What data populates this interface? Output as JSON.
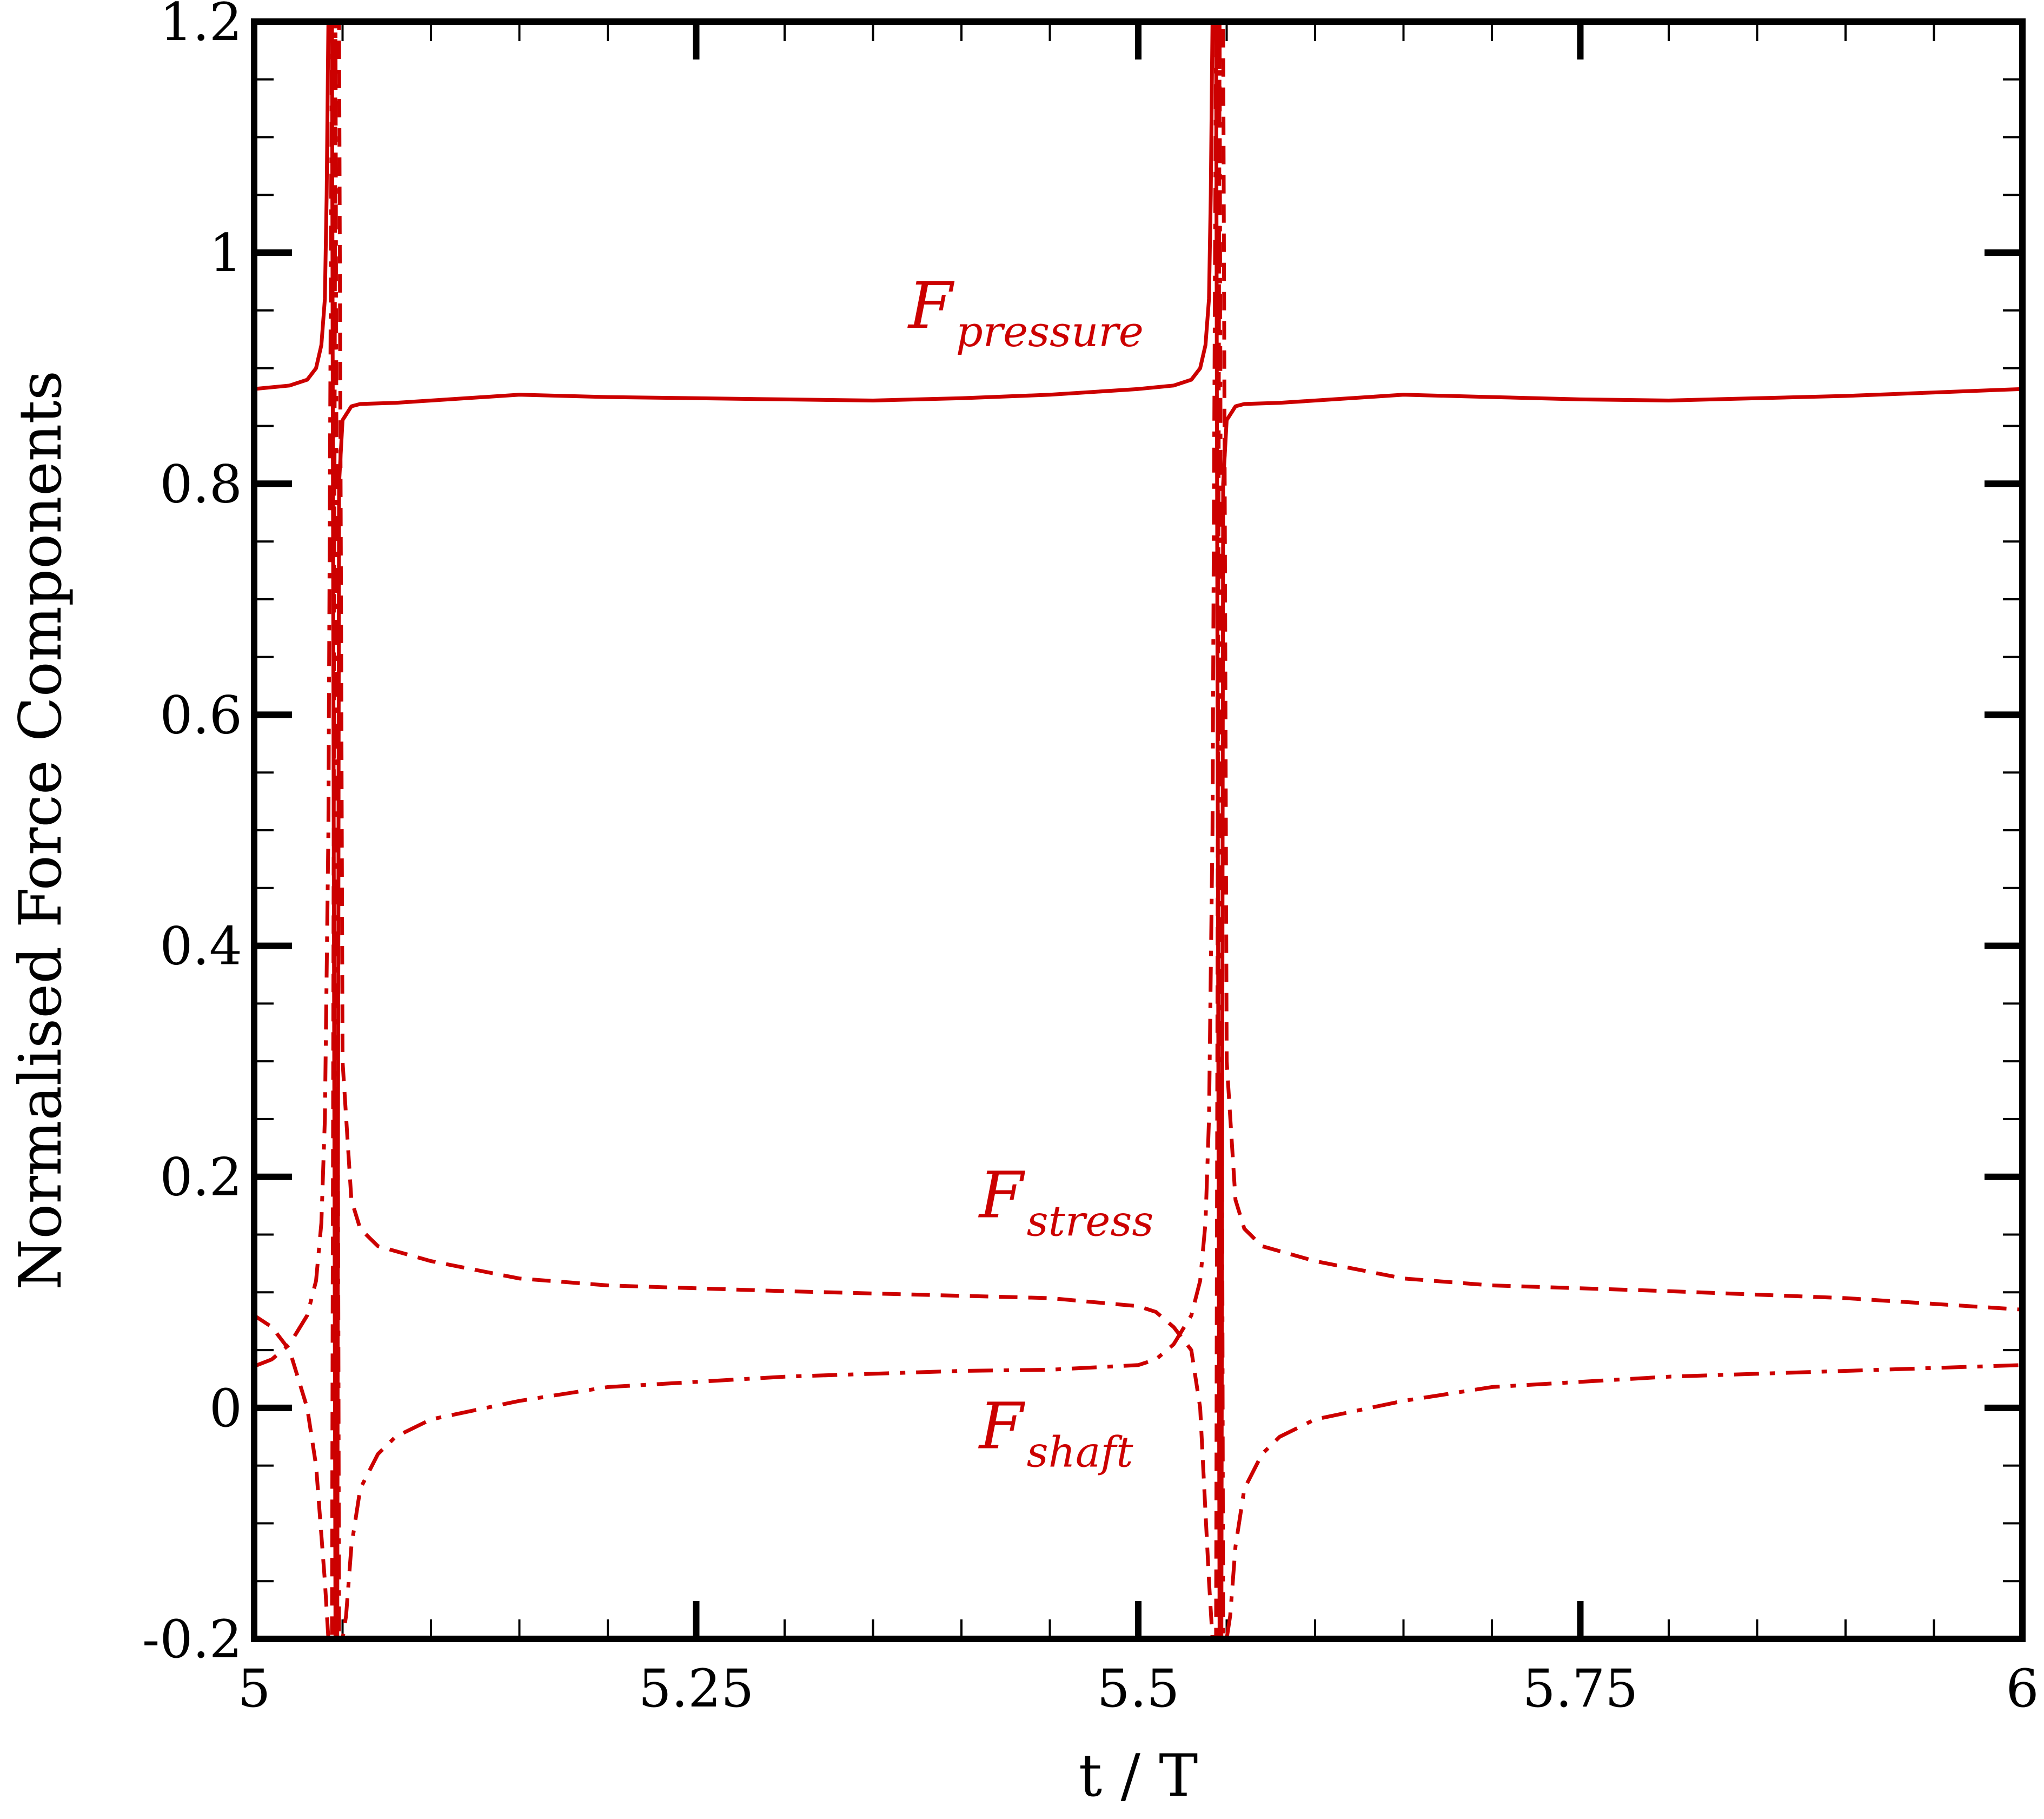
{
  "chart_data": {
    "type": "line",
    "title": "",
    "xlabel": "t / T",
    "ylabel": "Normalised Force Components",
    "xlim": [
      5,
      6
    ],
    "ylim": [
      -0.2,
      1.2
    ],
    "xticks": [
      5,
      5.25,
      5.5,
      5.75,
      6
    ],
    "xtick_labels": [
      "5",
      "5.25",
      "5.5",
      "5.75",
      "6"
    ],
    "yticks": [
      -0.2,
      0,
      0.2,
      0.4,
      0.6,
      0.8,
      1,
      1.2
    ],
    "ytick_labels": [
      "-0.2",
      "0",
      "0.2",
      "0.4",
      "0.6",
      "0.8",
      "1",
      "1.2"
    ],
    "x_minor_step": 0.05,
    "y_minor_step": 0.05,
    "grid": false,
    "line_color": "#cc0000",
    "series": [
      {
        "name": "pressure",
        "label_main": "F",
        "label_sub": "pressure",
        "style": "solid",
        "x": [
          5.0,
          5.02,
          5.03,
          5.035,
          5.038,
          5.04,
          5.041,
          5.042,
          5.043,
          5.044,
          5.046,
          5.047,
          5.048,
          5.05,
          5.055,
          5.06,
          5.08,
          5.1,
          5.15,
          5.2,
          5.3,
          5.35,
          5.4,
          5.45,
          5.5,
          5.52,
          5.53,
          5.535,
          5.538,
          5.54,
          5.541,
          5.542,
          5.543,
          5.544,
          5.546,
          5.547,
          5.548,
          5.55,
          5.555,
          5.56,
          5.58,
          5.6,
          5.65,
          5.7,
          5.75,
          5.8,
          5.85,
          5.9,
          5.95,
          6.0
        ],
        "y": [
          0.882,
          0.885,
          0.89,
          0.9,
          0.92,
          0.96,
          1.05,
          1.2,
          1.2,
          1.2,
          -0.2,
          -0.2,
          0.8,
          0.855,
          0.867,
          0.869,
          0.87,
          0.872,
          0.877,
          0.875,
          0.873,
          0.872,
          0.874,
          0.877,
          0.882,
          0.885,
          0.89,
          0.9,
          0.92,
          0.96,
          1.05,
          1.2,
          1.2,
          1.2,
          -0.2,
          -0.2,
          0.8,
          0.855,
          0.867,
          0.869,
          0.87,
          0.872,
          0.877,
          0.875,
          0.873,
          0.872,
          0.874,
          0.876,
          0.879,
          0.882
        ]
      },
      {
        "name": "stress",
        "label_main": "F",
        "label_sub": "stress",
        "style": "dashed",
        "x": [
          5.0,
          5.01,
          5.02,
          5.03,
          5.035,
          5.04,
          5.042,
          5.044,
          5.046,
          5.048,
          5.05,
          5.055,
          5.06,
          5.07,
          5.1,
          5.15,
          5.2,
          5.3,
          5.4,
          5.45,
          5.5,
          5.51,
          5.52,
          5.53,
          5.535,
          5.54,
          5.542,
          5.544,
          5.546,
          5.548,
          5.55,
          5.555,
          5.56,
          5.57,
          5.6,
          5.65,
          5.7,
          5.8,
          5.9,
          6.0
        ],
        "y": [
          0.08,
          0.07,
          0.05,
          0.0,
          -0.05,
          -0.15,
          -0.2,
          -0.2,
          1.2,
          1.2,
          0.3,
          0.18,
          0.155,
          0.14,
          0.127,
          0.112,
          0.106,
          0.101,
          0.097,
          0.095,
          0.088,
          0.083,
          0.07,
          0.05,
          0.0,
          -0.15,
          -0.2,
          -0.2,
          1.2,
          1.2,
          0.3,
          0.18,
          0.155,
          0.14,
          0.127,
          0.112,
          0.106,
          0.101,
          0.095,
          0.085
        ]
      },
      {
        "name": "shaft",
        "label_main": "F",
        "label_sub": "shaft",
        "style": "dashdot",
        "x": [
          5.0,
          5.01,
          5.02,
          5.03,
          5.035,
          5.038,
          5.04,
          5.042,
          5.044,
          5.046,
          5.048,
          5.05,
          5.052,
          5.055,
          5.06,
          5.07,
          5.08,
          5.1,
          5.15,
          5.2,
          5.3,
          5.4,
          5.45,
          5.5,
          5.51,
          5.52,
          5.53,
          5.535,
          5.538,
          5.54,
          5.542,
          5.544,
          5.546,
          5.548,
          5.55,
          5.552,
          5.555,
          5.56,
          5.57,
          5.58,
          5.6,
          5.65,
          5.7,
          5.8,
          5.9,
          6.0
        ],
        "y": [
          0.036,
          0.042,
          0.055,
          0.08,
          0.11,
          0.16,
          0.25,
          0.5,
          1.2,
          1.2,
          -0.2,
          -0.2,
          -0.18,
          -0.12,
          -0.07,
          -0.04,
          -0.025,
          -0.01,
          0.006,
          0.018,
          0.027,
          0.032,
          0.033,
          0.037,
          0.042,
          0.055,
          0.08,
          0.11,
          0.16,
          0.25,
          0.5,
          1.2,
          1.2,
          -0.2,
          -0.2,
          -0.18,
          -0.12,
          -0.07,
          -0.04,
          -0.025,
          -0.01,
          0.006,
          0.018,
          0.027,
          0.032,
          0.037
        ]
      }
    ],
    "annotations": [
      {
        "series": "pressure",
        "x": 5.37,
        "y": 0.935
      },
      {
        "series": "stress",
        "x": 5.41,
        "y": 0.165
      },
      {
        "series": "shaft",
        "x": 5.41,
        "y": -0.035
      }
    ]
  }
}
